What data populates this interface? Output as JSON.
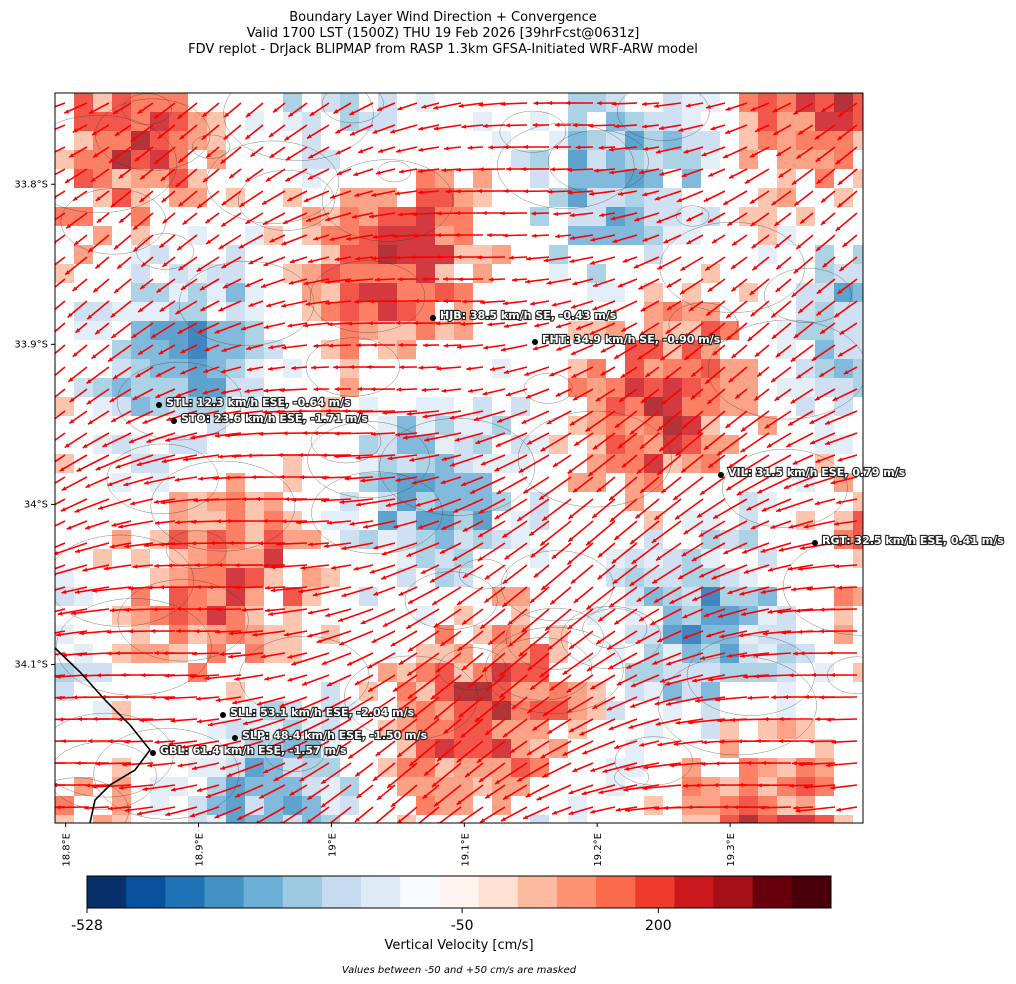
{
  "chart_data": {
    "type": "map",
    "title_lines": [
      "Boundary Layer Wind Direction + Convergence",
      "Valid 1700 LST (1500Z) THU 19 Feb 2026 [39hrFcst@0631z]",
      "FDV replot - DrJack BLIPMAP from RASP 1.3km GFSA-Initiated WRF-ARW model"
    ],
    "xlim": [
      18.792,
      19.4
    ],
    "xticks": [
      {
        "value": 18.8,
        "label": "18.8°E"
      },
      {
        "value": 18.9,
        "label": "18.9°E"
      },
      {
        "value": 19.0,
        "label": "19°E"
      },
      {
        "value": 19.1,
        "label": "19.1°E"
      },
      {
        "value": 19.2,
        "label": "19.2°E"
      },
      {
        "value": 19.3,
        "label": "19.3°E"
      }
    ],
    "ylim": [
      -33.743,
      -34.199
    ],
    "yticks": [
      {
        "value": -33.8,
        "label": "33.8°S"
      },
      {
        "value": -33.9,
        "label": "33.9°S"
      },
      {
        "value": -34.0,
        "label": "34°S"
      },
      {
        "value": -34.1,
        "label": "34.1°S"
      }
    ],
    "stations": [
      "HJB: 38.5 km/h SE, -0.43 m/s",
      "FHT: 34.9 km/h SE, -0.90 m/s",
      "STL: 12.3 km/h ESE, -0.64 m/s",
      "STO: 23.6 km/h ESE, -1.71 m/s",
      "VIL: 31.5 km/h ESE, 0.79 m/s",
      "RGT: 32.5 km/h ESE, 0.41 m/s",
      "SLL: 53.1 km/h ESE, -2.04 m/s",
      "SLP: 48.4 km/h ESE, -1.50 m/s",
      "GBL: 61.4 km/h ESE, -1.57 m/s"
    ],
    "wind_color": "#ff0000",
    "colorbar": {
      "label": "Vertical Velocity [cm/s]",
      "clim": [
        -528,
        420
      ],
      "ticks": [
        -528,
        -50,
        200
      ],
      "colors": [
        "#08306b",
        "#08519c",
        "#2171b5",
        "#4292c6",
        "#6baed6",
        "#9ecae1",
        "#c6dbef",
        "#deebf7",
        "#f7fbff",
        "#fff5f0",
        "#fee0d2",
        "#fcbba1",
        "#fc9272",
        "#fb6a4a",
        "#ef3b2c",
        "#cb181d",
        "#a50f15",
        "#67000d",
        "#4a0008"
      ]
    },
    "note": "Values between -50 and +50 cm/s are masked"
  }
}
